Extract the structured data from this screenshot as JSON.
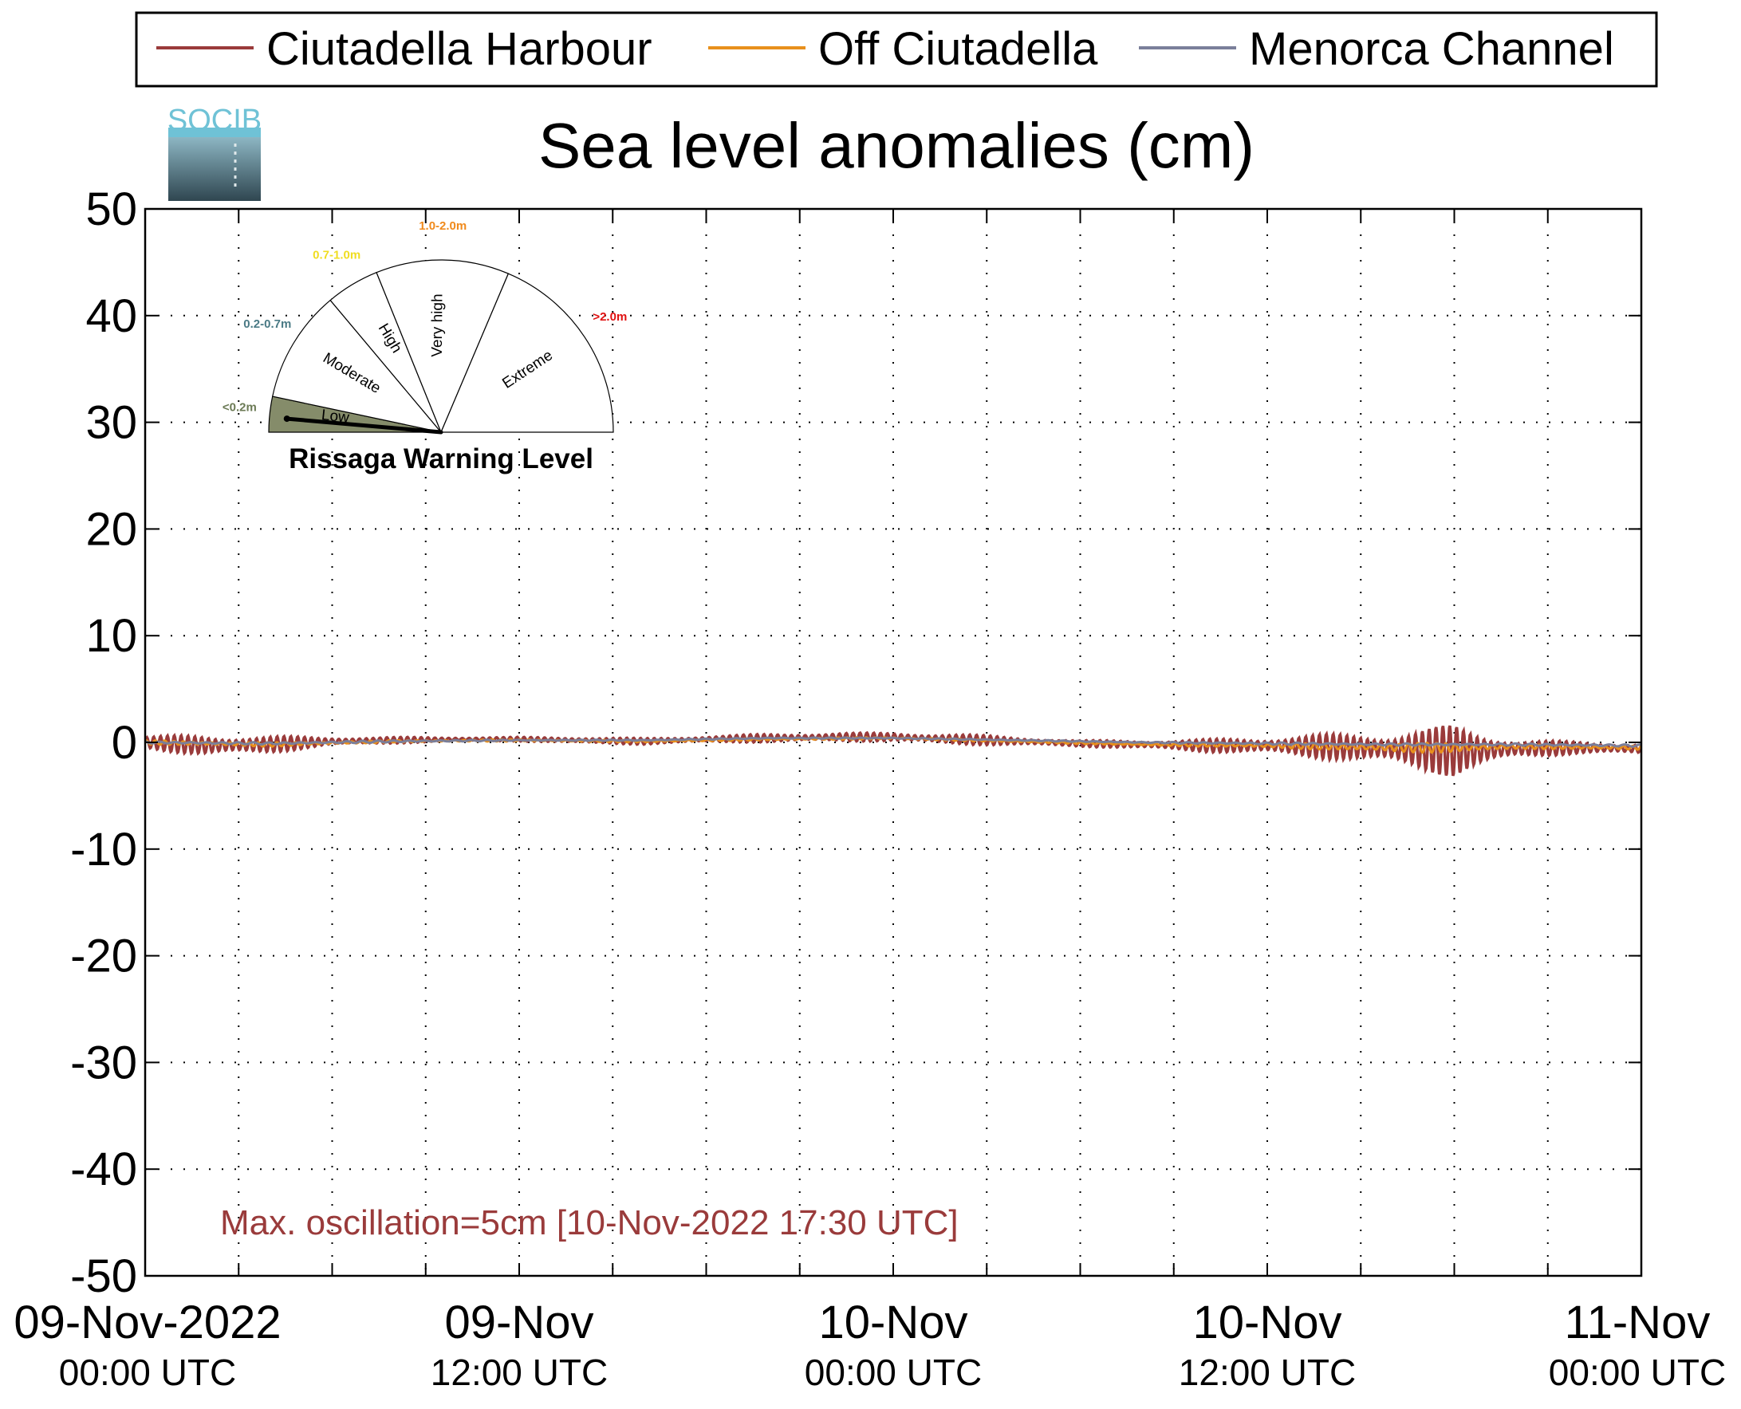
{
  "chart_data": {
    "type": "line",
    "title": "Sea level anomalies (cm)",
    "xlabel": "",
    "ylabel": "",
    "ylim": [
      -50,
      50
    ],
    "yticks": [
      50,
      40,
      30,
      20,
      10,
      0,
      -10,
      -20,
      -30,
      -40,
      -50
    ],
    "yticklabels": [
      "50",
      "40",
      "30",
      "20",
      "10",
      "0",
      "-10",
      "-20",
      "-30",
      "-40",
      "-50"
    ],
    "xlim_hours": [
      0,
      48
    ],
    "xticks_hours": [
      0,
      12,
      24,
      36,
      48
    ],
    "xticklabels": [
      {
        "line1": "09-Nov-2022",
        "line2": "00:00 UTC"
      },
      {
        "line1": "09-Nov",
        "line2": "12:00 UTC"
      },
      {
        "line1": "10-Nov",
        "line2": "00:00 UTC"
      },
      {
        "line1": "10-Nov",
        "line2": "12:00 UTC"
      },
      {
        "line1": "11-Nov",
        "line2": "00:00 UTC"
      }
    ],
    "grid": true,
    "legend_position": "top",
    "series": [
      {
        "name": "Ciutadella Harbour",
        "color": "#9a3b3b",
        "x": [
          0,
          2,
          4,
          6,
          8,
          10,
          12,
          14,
          16,
          18,
          20,
          22,
          24,
          26,
          28,
          30,
          32,
          34,
          36,
          38,
          40,
          42,
          44,
          46,
          48
        ],
        "y": [
          0,
          -0.3,
          -0.2,
          0.1,
          0.2,
          0.3,
          0.3,
          0.2,
          0.1,
          0.3,
          0.4,
          0.5,
          0.5,
          0.3,
          0.1,
          -0.1,
          -0.2,
          -0.3,
          -0.3,
          -0.4,
          -0.6,
          -0.8,
          -0.6,
          -0.5,
          -0.6
        ],
        "amplitude": [
          0.6,
          1.0,
          0.8,
          0.4,
          0.3,
          0.2,
          0.2,
          0.3,
          0.3,
          0.3,
          0.4,
          0.4,
          0.4,
          0.5,
          0.4,
          0.3,
          0.4,
          0.6,
          0.8,
          1.2,
          1.5,
          2.5,
          0.8,
          0.6,
          0.5
        ]
      },
      {
        "name": "Off Ciutadella",
        "color": "#e8901c",
        "x": [
          0,
          4,
          8,
          12,
          16,
          20,
          24,
          28,
          32,
          36,
          40,
          42,
          44,
          48
        ],
        "y": [
          0,
          -0.2,
          0.1,
          0.2,
          0.1,
          0.3,
          0.4,
          0.1,
          -0.2,
          -0.3,
          -0.5,
          -0.5,
          -0.4,
          -0.5
        ],
        "amplitude": [
          0.2,
          0.2,
          0.1,
          0.1,
          0.1,
          0.1,
          0.1,
          0.1,
          0.1,
          0.2,
          0.4,
          0.5,
          0.2,
          0.2
        ]
      },
      {
        "name": "Menorca Channel",
        "color": "#7a7f9a",
        "x": [
          0,
          4,
          8,
          12,
          16,
          20,
          24,
          28,
          32,
          36,
          40,
          44,
          48
        ],
        "y": [
          0,
          -0.1,
          0.1,
          0.2,
          0.2,
          0.4,
          0.4,
          0.2,
          0,
          -0.1,
          -0.2,
          -0.2,
          -0.3
        ],
        "amplitude": [
          0.1,
          0.1,
          0.1,
          0.05,
          0.05,
          0.05,
          0.05,
          0.05,
          0.05,
          0.1,
          0.1,
          0.1,
          0.1
        ]
      }
    ],
    "annotations": [
      {
        "text": "Max. oscillation=5cm [10-Nov-2022 17:30 UTC]",
        "color": "#9a3b3b"
      }
    ]
  },
  "gauge": {
    "title": "Rissaga Warning Level",
    "sectors": [
      {
        "name": "Low",
        "range": "<0.2m",
        "range_color": "#6b7a55",
        "active": true
      },
      {
        "name": "Moderate",
        "range": "0.2-0.7m",
        "range_color": "#4a7a85",
        "active": false
      },
      {
        "name": "High",
        "range": "0.7-1.0m",
        "range_color": "#f0dd20",
        "active": false
      },
      {
        "name": "Very high",
        "range": "1.0-2.0m",
        "range_color": "#f08a1c",
        "active": false
      },
      {
        "name": "Extreme",
        "range": ">2.0m",
        "range_color": "#e01010",
        "active": false
      }
    ],
    "active_fill": "#858c6a"
  },
  "logo": {
    "text": "SOCIB",
    "colors": [
      "#6fc2d6",
      "#2f4f5a"
    ]
  }
}
